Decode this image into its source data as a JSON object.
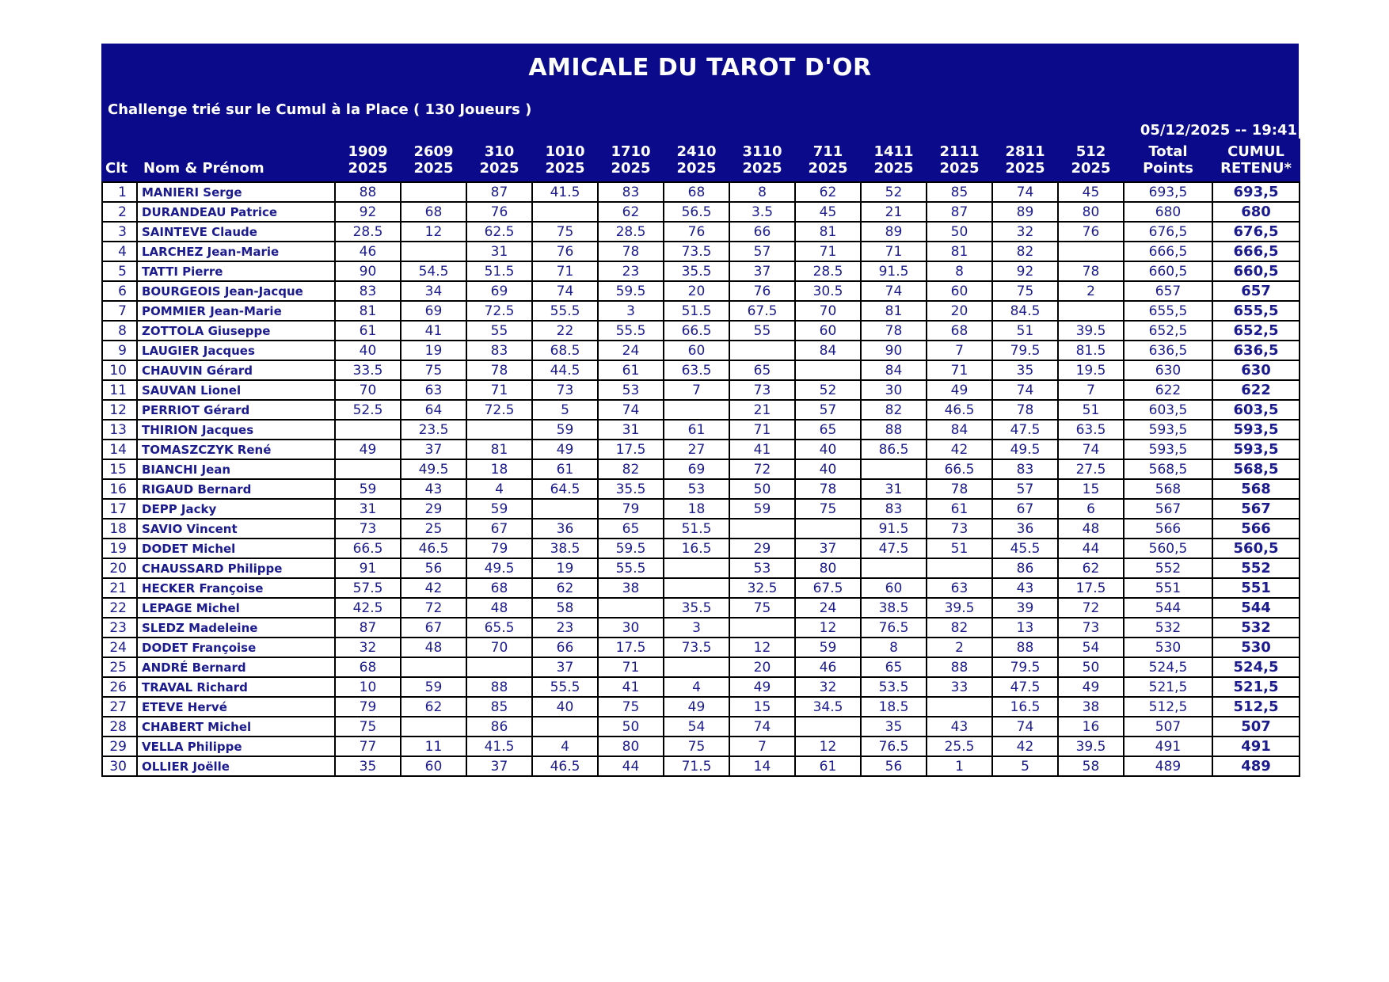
{
  "header": {
    "title": "AMICALE DU TAROT D'OR",
    "subtitle": "Challenge trié sur le Cumul à la Place ( 130 Joueurs )",
    "datetime": "05/12/2025 -- 19:41"
  },
  "colors": {
    "band_bg": "#0a0a8a",
    "table_text": "#1b1b8e",
    "border": "#000000",
    "page_bg": "#ffffff"
  },
  "table": {
    "clt_label": "Clt",
    "name_label": "Nom & Prénom",
    "total_line1": "Total",
    "total_line2": "Points",
    "cumul_line1": "CUMUL",
    "cumul_line2": "RETENU*",
    "date_columns": [
      {
        "code": "1909",
        "year": "2025"
      },
      {
        "code": "2609",
        "year": "2025"
      },
      {
        "code": "310",
        "year": "2025"
      },
      {
        "code": "1010",
        "year": "2025"
      },
      {
        "code": "1710",
        "year": "2025"
      },
      {
        "code": "2410",
        "year": "2025"
      },
      {
        "code": "3110",
        "year": "2025"
      },
      {
        "code": "711",
        "year": "2025"
      },
      {
        "code": "1411",
        "year": "2025"
      },
      {
        "code": "2111",
        "year": "2025"
      },
      {
        "code": "2811",
        "year": "2025"
      },
      {
        "code": "512",
        "year": "2025"
      }
    ]
  },
  "rows": [
    {
      "clt": "1",
      "name": "MANIERI Serge",
      "scores": [
        "88",
        "",
        "87",
        "41.5",
        "83",
        "68",
        "8",
        "62",
        "52",
        "85",
        "74",
        "45"
      ],
      "total": "693,5",
      "cumul": "693,5"
    },
    {
      "clt": "2",
      "name": "DURANDEAU Patrice",
      "scores": [
        "92",
        "68",
        "76",
        "",
        "62",
        "56.5",
        "3.5",
        "45",
        "21",
        "87",
        "89",
        "80"
      ],
      "total": "680",
      "cumul": "680"
    },
    {
      "clt": "3",
      "name": "SAINTEVE Claude",
      "scores": [
        "28.5",
        "12",
        "62.5",
        "75",
        "28.5",
        "76",
        "66",
        "81",
        "89",
        "50",
        "32",
        "76"
      ],
      "total": "676,5",
      "cumul": "676,5"
    },
    {
      "clt": "4",
      "name": "LARCHEZ Jean-Marie",
      "scores": [
        "46",
        "",
        "31",
        "76",
        "78",
        "73.5",
        "57",
        "71",
        "71",
        "81",
        "82",
        ""
      ],
      "total": "666,5",
      "cumul": "666,5"
    },
    {
      "clt": "5",
      "name": "TATTI Pierre",
      "scores": [
        "90",
        "54.5",
        "51.5",
        "71",
        "23",
        "35.5",
        "37",
        "28.5",
        "91.5",
        "8",
        "92",
        "78"
      ],
      "total": "660,5",
      "cumul": "660,5"
    },
    {
      "clt": "6",
      "name": "BOURGEOIS Jean-Jacque",
      "scores": [
        "83",
        "34",
        "69",
        "74",
        "59.5",
        "20",
        "76",
        "30.5",
        "74",
        "60",
        "75",
        "2"
      ],
      "total": "657",
      "cumul": "657"
    },
    {
      "clt": "7",
      "name": "POMMIER Jean-Marie",
      "scores": [
        "81",
        "69",
        "72.5",
        "55.5",
        "3",
        "51.5",
        "67.5",
        "70",
        "81",
        "20",
        "84.5",
        ""
      ],
      "total": "655,5",
      "cumul": "655,5"
    },
    {
      "clt": "8",
      "name": "ZOTTOLA Giuseppe",
      "scores": [
        "61",
        "41",
        "55",
        "22",
        "55.5",
        "66.5",
        "55",
        "60",
        "78",
        "68",
        "51",
        "39.5"
      ],
      "total": "652,5",
      "cumul": "652,5"
    },
    {
      "clt": "9",
      "name": "LAUGIER Jacques",
      "scores": [
        "40",
        "19",
        "83",
        "68.5",
        "24",
        "60",
        "",
        "84",
        "90",
        "7",
        "79.5",
        "81.5"
      ],
      "total": "636,5",
      "cumul": "636,5"
    },
    {
      "clt": "10",
      "name": "CHAUVIN Gérard",
      "scores": [
        "33.5",
        "75",
        "78",
        "44.5",
        "61",
        "63.5",
        "65",
        "",
        "84",
        "71",
        "35",
        "19.5"
      ],
      "total": "630",
      "cumul": "630"
    },
    {
      "clt": "11",
      "name": "SAUVAN Lionel",
      "scores": [
        "70",
        "63",
        "71",
        "73",
        "53",
        "7",
        "73",
        "52",
        "30",
        "49",
        "74",
        "7"
      ],
      "total": "622",
      "cumul": "622"
    },
    {
      "clt": "12",
      "name": "PERRIOT Gérard",
      "scores": [
        "52.5",
        "64",
        "72.5",
        "5",
        "74",
        "",
        "21",
        "57",
        "82",
        "46.5",
        "78",
        "51"
      ],
      "total": "603,5",
      "cumul": "603,5"
    },
    {
      "clt": "13",
      "name": "THIRION Jacques",
      "scores": [
        "",
        "23.5",
        "",
        "59",
        "31",
        "61",
        "71",
        "65",
        "88",
        "84",
        "47.5",
        "63.5"
      ],
      "total": "593,5",
      "cumul": "593,5"
    },
    {
      "clt": "14",
      "name": "TOMASZCZYK René",
      "scores": [
        "49",
        "37",
        "81",
        "49",
        "17.5",
        "27",
        "41",
        "40",
        "86.5",
        "42",
        "49.5",
        "74"
      ],
      "total": "593,5",
      "cumul": "593,5"
    },
    {
      "clt": "15",
      "name": "BIANCHI Jean",
      "scores": [
        "",
        "49.5",
        "18",
        "61",
        "82",
        "69",
        "72",
        "40",
        "",
        "66.5",
        "83",
        "27.5"
      ],
      "total": "568,5",
      "cumul": "568,5"
    },
    {
      "clt": "16",
      "name": "RIGAUD Bernard",
      "scores": [
        "59",
        "43",
        "4",
        "64.5",
        "35.5",
        "53",
        "50",
        "78",
        "31",
        "78",
        "57",
        "15"
      ],
      "total": "568",
      "cumul": "568"
    },
    {
      "clt": "17",
      "name": "DEPP Jacky",
      "scores": [
        "31",
        "29",
        "59",
        "",
        "79",
        "18",
        "59",
        "75",
        "83",
        "61",
        "67",
        "6"
      ],
      "total": "567",
      "cumul": "567"
    },
    {
      "clt": "18",
      "name": "SAVIO Vincent",
      "scores": [
        "73",
        "25",
        "67",
        "36",
        "65",
        "51.5",
        "",
        "",
        "91.5",
        "73",
        "36",
        "48"
      ],
      "total": "566",
      "cumul": "566"
    },
    {
      "clt": "19",
      "name": "DODET Michel",
      "scores": [
        "66.5",
        "46.5",
        "79",
        "38.5",
        "59.5",
        "16.5",
        "29",
        "37",
        "47.5",
        "51",
        "45.5",
        "44"
      ],
      "total": "560,5",
      "cumul": "560,5"
    },
    {
      "clt": "20",
      "name": "CHAUSSARD Philippe",
      "scores": [
        "91",
        "56",
        "49.5",
        "19",
        "55.5",
        "",
        "53",
        "80",
        "",
        "",
        "86",
        "62"
      ],
      "total": "552",
      "cumul": "552"
    },
    {
      "clt": "21",
      "name": "HECKER Françoise",
      "scores": [
        "57.5",
        "42",
        "68",
        "62",
        "38",
        "",
        "32.5",
        "67.5",
        "60",
        "63",
        "43",
        "17.5"
      ],
      "total": "551",
      "cumul": "551"
    },
    {
      "clt": "22",
      "name": "LEPAGE Michel",
      "scores": [
        "42.5",
        "72",
        "48",
        "58",
        "",
        "35.5",
        "75",
        "24",
        "38.5",
        "39.5",
        "39",
        "72"
      ],
      "total": "544",
      "cumul": "544"
    },
    {
      "clt": "23",
      "name": "SLEDZ Madeleine",
      "scores": [
        "87",
        "67",
        "65.5",
        "23",
        "30",
        "3",
        "",
        "12",
        "76.5",
        "82",
        "13",
        "73"
      ],
      "total": "532",
      "cumul": "532"
    },
    {
      "clt": "24",
      "name": "DODET Françoise",
      "scores": [
        "32",
        "48",
        "70",
        "66",
        "17.5",
        "73.5",
        "12",
        "59",
        "8",
        "2",
        "88",
        "54"
      ],
      "total": "530",
      "cumul": "530"
    },
    {
      "clt": "25",
      "name": "ANDRÉ Bernard",
      "scores": [
        "68",
        "",
        "",
        "37",
        "71",
        "",
        "20",
        "46",
        "65",
        "88",
        "79.5",
        "50"
      ],
      "total": "524,5",
      "cumul": "524,5"
    },
    {
      "clt": "26",
      "name": "TRAVAL Richard",
      "scores": [
        "10",
        "59",
        "88",
        "55.5",
        "41",
        "4",
        "49",
        "32",
        "53.5",
        "33",
        "47.5",
        "49"
      ],
      "total": "521,5",
      "cumul": "521,5"
    },
    {
      "clt": "27",
      "name": "ETEVE Hervé",
      "scores": [
        "79",
        "62",
        "85",
        "40",
        "75",
        "49",
        "15",
        "34.5",
        "18.5",
        "",
        "16.5",
        "38"
      ],
      "total": "512,5",
      "cumul": "512,5"
    },
    {
      "clt": "28",
      "name": "CHABERT Michel",
      "scores": [
        "75",
        "",
        "86",
        "",
        "50",
        "54",
        "74",
        "",
        "35",
        "43",
        "74",
        "16"
      ],
      "total": "507",
      "cumul": "507"
    },
    {
      "clt": "29",
      "name": "VELLA Philippe",
      "scores": [
        "77",
        "11",
        "41.5",
        "4",
        "80",
        "75",
        "7",
        "12",
        "76.5",
        "25.5",
        "42",
        "39.5"
      ],
      "total": "491",
      "cumul": "491"
    },
    {
      "clt": "30",
      "name": "OLLIER Joëlle",
      "scores": [
        "35",
        "60",
        "37",
        "46.5",
        "44",
        "71.5",
        "14",
        "61",
        "56",
        "1",
        "5",
        "58"
      ],
      "total": "489",
      "cumul": "489"
    }
  ]
}
